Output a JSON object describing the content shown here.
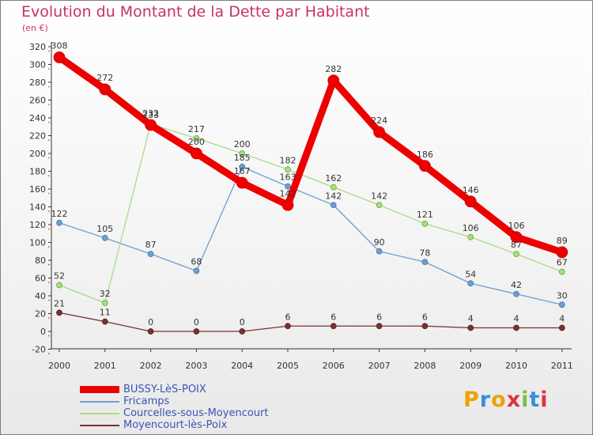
{
  "page": {
    "title": "Evolution du Montant de la Dette par Habitant",
    "subtitle": "(en €)",
    "logo": "Proxiti"
  },
  "colors": {
    "title": "#c8316a",
    "legend_text": "#3a54b4",
    "axis": "#333333",
    "grid_dot": "#cc0000"
  },
  "chart_data": {
    "type": "line",
    "x": [
      "2000",
      "2001",
      "2002",
      "2003",
      "2004",
      "2005",
      "2006",
      "2007",
      "2008",
      "2009",
      "2010",
      "2011"
    ],
    "ylim": [
      -20,
      320
    ],
    "yticks": [
      -20,
      0,
      20,
      40,
      60,
      80,
      100,
      120,
      140,
      160,
      180,
      200,
      220,
      240,
      260,
      280,
      300,
      320
    ],
    "series": [
      {
        "name": "BUSSY-LèS-POIX",
        "color": "#ee0000",
        "width": 9,
        "marker": 7,
        "dot_stroke": "#cc0000",
        "values": [
          308,
          272,
          232,
          200,
          167,
          142,
          282,
          224,
          186,
          146,
          106,
          89
        ]
      },
      {
        "name": "Fricamps",
        "color": "#6e9ed0",
        "width": 1.3,
        "marker": 3.5,
        "dot_stroke": "#3d6fa8",
        "values": [
          122,
          105,
          87,
          68,
          185,
          163,
          142,
          90,
          78,
          54,
          42,
          30
        ]
      },
      {
        "name": "Courcelles-sous-Moyencourt",
        "color": "#a8dc82",
        "width": 1.3,
        "marker": 3.5,
        "dot_stroke": "#5aa02e",
        "values": [
          52,
          32,
          233,
          217,
          200,
          182,
          162,
          142,
          121,
          106,
          87,
          67
        ]
      },
      {
        "name": "Moyencourt-lès-Poix",
        "color": "#7a3030",
        "width": 1.3,
        "marker": 3.5,
        "dot_stroke": "#5a1a1a",
        "values": [
          21,
          11,
          0,
          0,
          0,
          6,
          6,
          6,
          6,
          4,
          4,
          4
        ]
      }
    ]
  }
}
